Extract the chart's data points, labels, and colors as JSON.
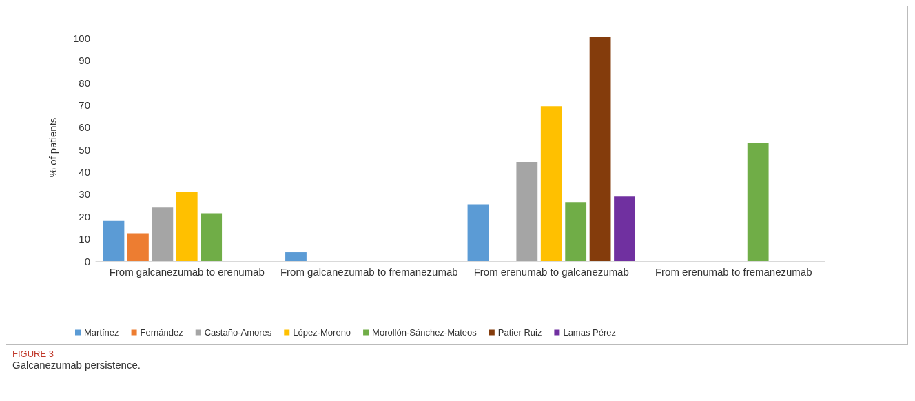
{
  "chart_data": {
    "type": "bar",
    "ylabel": "% of patients",
    "categories": [
      "From galcanezumab to erenumab",
      "From galcanezumab to fremanezumab",
      "From erenumab to galcanezumab",
      "From erenumab to fremanezumab"
    ],
    "series": [
      {
        "name": "Martínez",
        "color": "#5b9bd5",
        "values": [
          18,
          4,
          25.5,
          null
        ]
      },
      {
        "name": "Fernández",
        "color": "#ed7d31",
        "values": [
          12.5,
          null,
          null,
          null
        ]
      },
      {
        "name": "Castaño-Amores",
        "color": "#a5a5a5",
        "values": [
          24,
          null,
          44.5,
          null
        ]
      },
      {
        "name": "López-Moreno",
        "color": "#ffc000",
        "values": [
          31,
          null,
          69.5,
          null
        ]
      },
      {
        "name": "Morollón-Sánchez-Mateos",
        "color": "#70ad47",
        "values": [
          21.5,
          null,
          26.5,
          53
        ]
      },
      {
        "name": "Patier Ruiz",
        "color": "#843c0c",
        "values": [
          null,
          null,
          100.5,
          null
        ]
      },
      {
        "name": "Lamas Pérez",
        "color": "#7030a0",
        "values": [
          null,
          null,
          29,
          null
        ]
      }
    ],
    "ylim": [
      0,
      102
    ],
    "yticks": [
      0,
      10,
      20,
      30,
      40,
      50,
      60,
      70,
      80,
      90,
      100
    ],
    "grid": false,
    "legend": "bottom left",
    "title": "FIGURE 3",
    "annotations": [
      "Galcanezumab persistence."
    ]
  }
}
